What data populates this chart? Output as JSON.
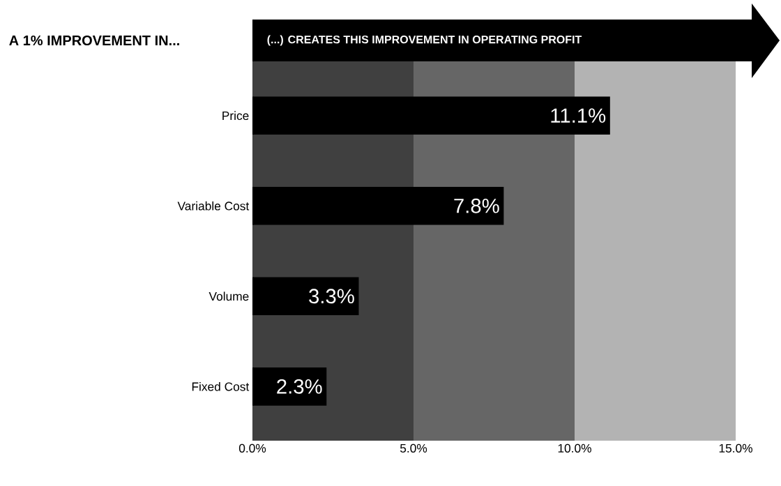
{
  "chart_data": {
    "type": "bar",
    "orientation": "horizontal",
    "title": "A 1% IMPROVEMENT IN...",
    "xlabel": "(...) CREATES THIS IMPROVEMENT IN OPERATING PROFIT",
    "categories": [
      "Price",
      "Variable Cost",
      "Volume",
      "Fixed Cost"
    ],
    "values": [
      11.1,
      7.8,
      3.3,
      2.3
    ],
    "color": "#000000",
    "value_labels": [
      "11.1%",
      "7.8%",
      "3.3%",
      "2.3%"
    ],
    "xlim": [
      0,
      15
    ],
    "xticks": [
      {
        "value": 0,
        "label": "0.0%"
      },
      {
        "value": 5,
        "label": "5.0%"
      },
      {
        "value": 10,
        "label": "10.0%"
      },
      {
        "value": 15,
        "label": "15.0%"
      }
    ],
    "bands": [
      {
        "axis": "x",
        "from": 0,
        "to": 5,
        "color": "#404040"
      },
      {
        "axis": "x",
        "from": 5,
        "to": 10,
        "color": "#666666"
      },
      {
        "axis": "x",
        "from": 10,
        "to": 15,
        "color": "#b3b3b3"
      }
    ]
  }
}
